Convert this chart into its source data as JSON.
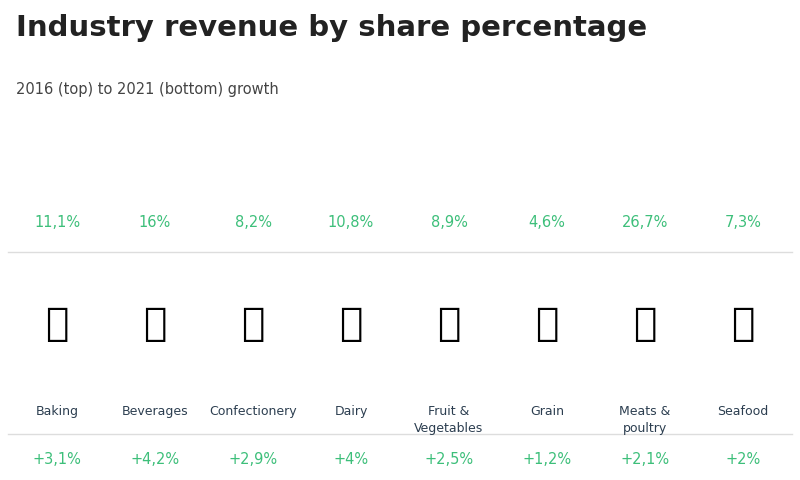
{
  "title": "Industry revenue by share percentage",
  "subtitle": "2016 (top) to 2021 (bottom) growth",
  "title_color": "#222222",
  "subtitle_color": "#444444",
  "green_color": "#3dbf7a",
  "dark_color": "#2c3e50",
  "line_color": "#dddddd",
  "bg_color": "#ffffff",
  "categories": [
    "Baking",
    "Beverages",
    "Confectionery",
    "Dairy",
    "Fruit &\nVegetables",
    "Grain",
    "Meats &\npoultry",
    "Seafood"
  ],
  "top_values": [
    "11,1%",
    "16%",
    "8,2%",
    "10,8%",
    "8,9%",
    "4,6%",
    "26,7%",
    "7,3%"
  ],
  "bottom_values": [
    "+3,1%",
    "+4,2%",
    "+2,9%",
    "+4%",
    "+2,5%",
    "+1,2%",
    "+2,1%",
    "+2%"
  ],
  "figsize": [
    8.0,
    4.8
  ],
  "dpi": 100
}
